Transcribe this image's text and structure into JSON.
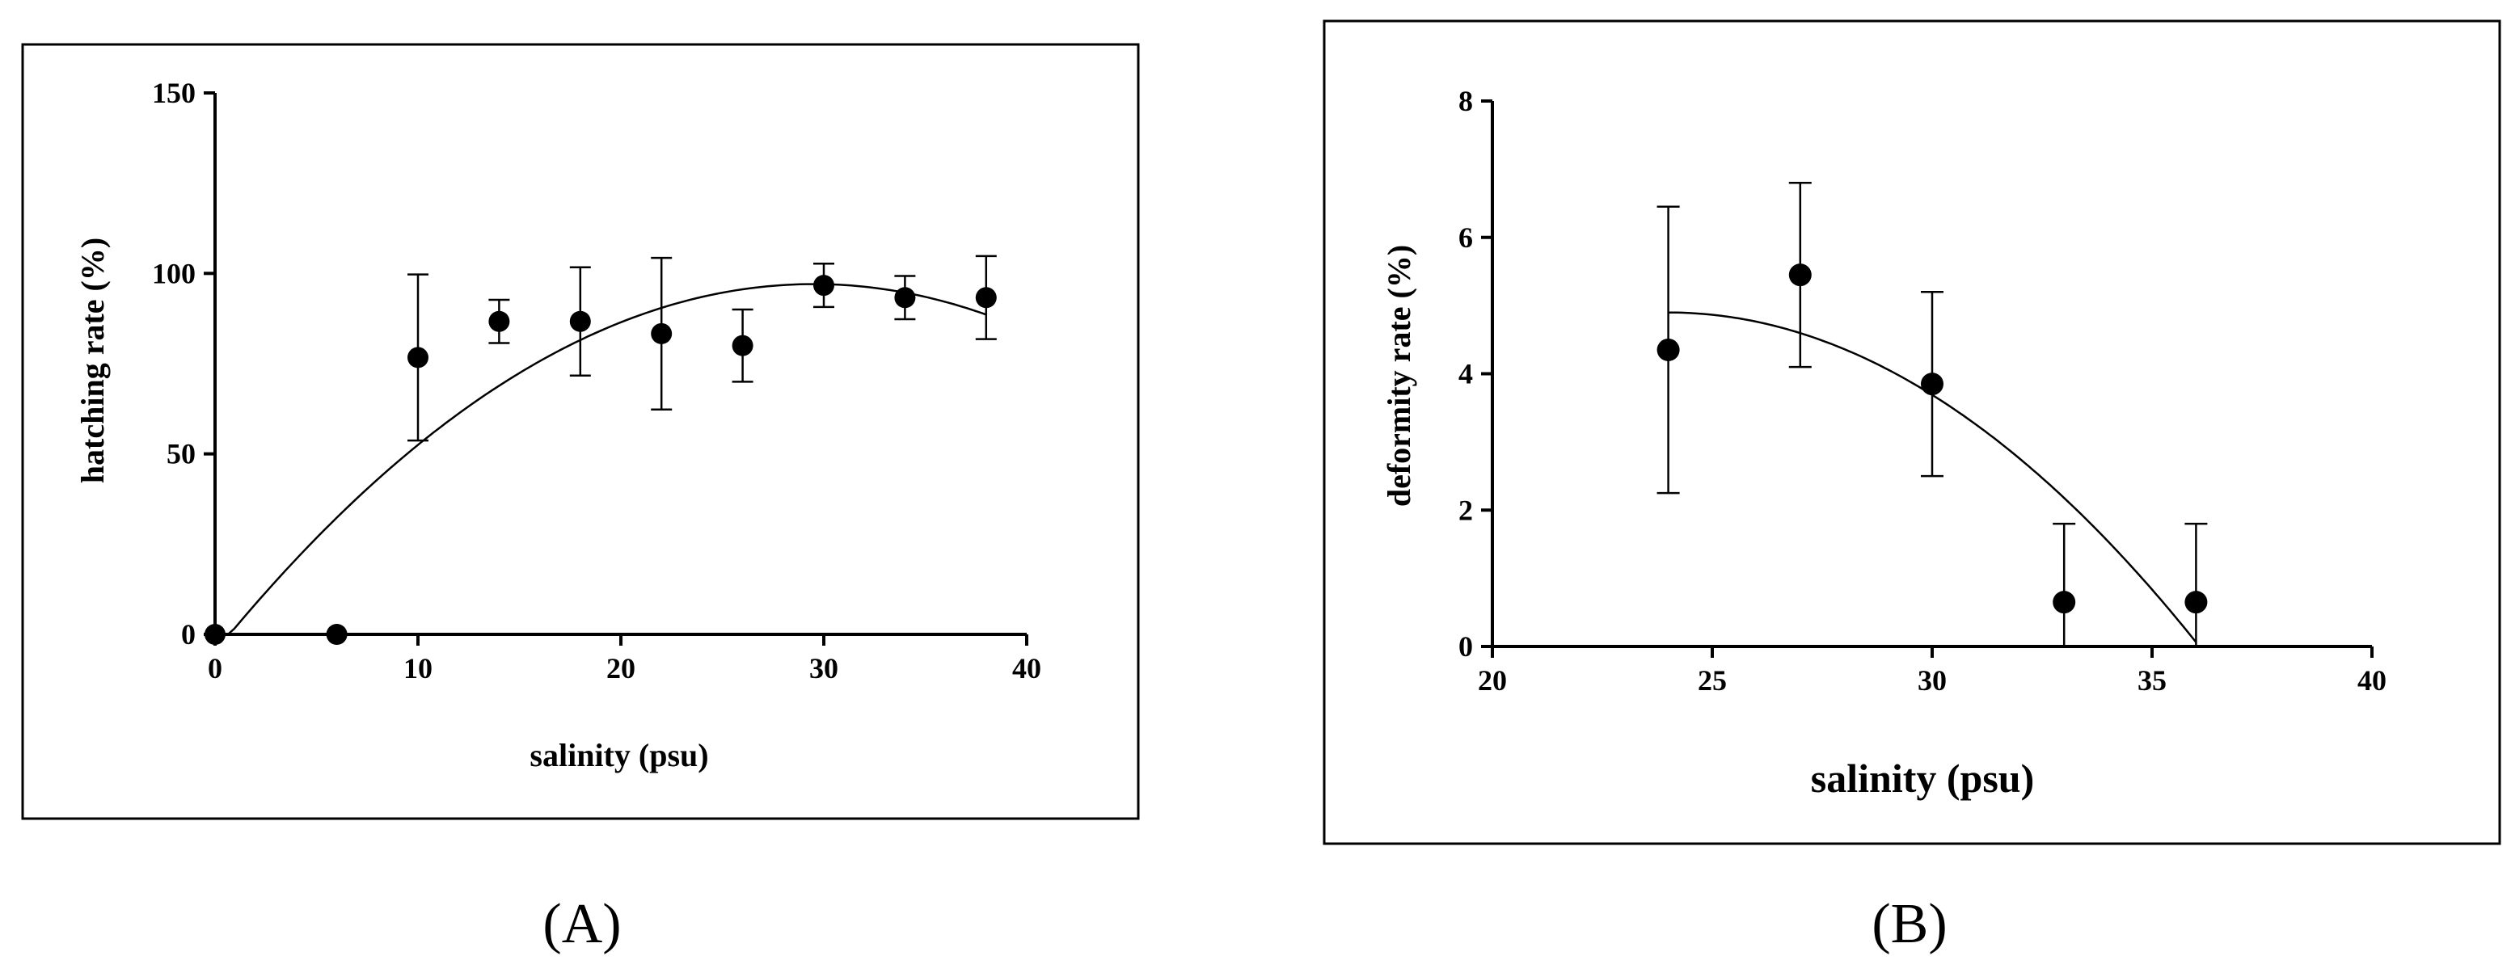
{
  "panels": [
    {
      "label": "A",
      "panel_label_display": "(A)"
    },
    {
      "label": "B",
      "panel_label_display": "(B)"
    }
  ],
  "chart_data": [
    {
      "type": "scatter",
      "title": "",
      "xlabel": "salinity (psu)",
      "ylabel": "hatching rate (%)",
      "xlim": [
        0,
        40
      ],
      "ylim": [
        0,
        150
      ],
      "xticks": [
        0,
        10,
        20,
        30,
        40
      ],
      "yticks": [
        0,
        50,
        100,
        150
      ],
      "grid": false,
      "points": [
        {
          "x": 0,
          "y": 0,
          "err": 0
        },
        {
          "x": 6,
          "y": 0,
          "err": 0
        },
        {
          "x": 10,
          "y": 76.7,
          "err": 23
        },
        {
          "x": 14,
          "y": 86.7,
          "err": 6
        },
        {
          "x": 18,
          "y": 86.7,
          "err": 15
        },
        {
          "x": 22,
          "y": 83.3,
          "err": 21
        },
        {
          "x": 26,
          "y": 80,
          "err": 10
        },
        {
          "x": 30,
          "y": 96.7,
          "err": 6
        },
        {
          "x": 34,
          "y": 93.3,
          "err": 6
        },
        {
          "x": 38,
          "y": 93.3,
          "err": 11.5
        }
      ],
      "fit_curve": {
        "kind": "quadratic",
        "x_range": [
          0,
          38
        ],
        "coefficients": {
          "a": -0.1171,
          "b": 6.91,
          "c": -4.9
        }
      }
    },
    {
      "type": "scatter",
      "title": "",
      "xlabel": "salinity (psu)",
      "ylabel": "deformity rate (%)",
      "xlim": [
        20,
        40
      ],
      "ylim": [
        0,
        8
      ],
      "xticks": [
        20,
        25,
        30,
        35,
        40
      ],
      "yticks": [
        0,
        2,
        4,
        6,
        8
      ],
      "grid": false,
      "points": [
        {
          "x": 24,
          "y": 4.35,
          "err": 2.1
        },
        {
          "x": 27,
          "y": 5.45,
          "err": 1.35
        },
        {
          "x": 30,
          "y": 3.85,
          "err": 1.35
        },
        {
          "x": 33,
          "y": 0.65,
          "err": 1.15
        },
        {
          "x": 36,
          "y": 0.65,
          "err": 1.15
        }
      ],
      "fit_curve": {
        "kind": "quadratic",
        "x_range": [
          24,
          36
        ],
        "coefficients": {
          "a": -0.0336,
          "b": 1.613,
          "c": -14.46
        }
      }
    }
  ]
}
